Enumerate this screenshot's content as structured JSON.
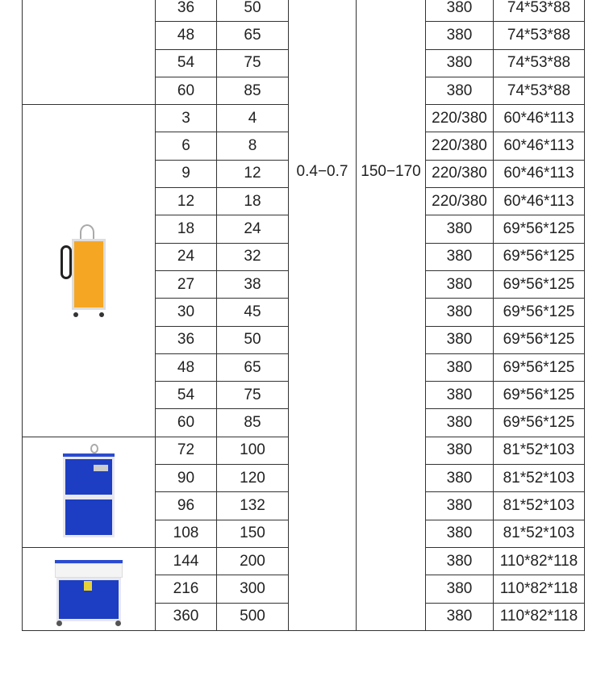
{
  "pressure": "0.4−0.7",
  "temperature": "150−170",
  "groups": [
    {
      "image": "none",
      "rows": [
        [
          "36",
          "50",
          "380",
          "74*53*88"
        ],
        [
          "48",
          "65",
          "380",
          "74*53*88"
        ],
        [
          "54",
          "75",
          "380",
          "74*53*88"
        ],
        [
          "60",
          "85",
          "380",
          "74*53*88"
        ]
      ]
    },
    {
      "image": "orange-steam-generator",
      "rows": [
        [
          "3",
          "4",
          "220/380",
          "60*46*113"
        ],
        [
          "6",
          "8",
          "220/380",
          "60*46*113"
        ],
        [
          "9",
          "12",
          "220/380",
          "60*46*113"
        ],
        [
          "12",
          "18",
          "220/380",
          "60*46*113"
        ],
        [
          "18",
          "24",
          "380",
          "69*56*125"
        ],
        [
          "24",
          "32",
          "380",
          "69*56*125"
        ],
        [
          "27",
          "38",
          "380",
          "69*56*125"
        ],
        [
          "30",
          "45",
          "380",
          "69*56*125"
        ],
        [
          "36",
          "50",
          "380",
          "69*56*125"
        ],
        [
          "48",
          "65",
          "380",
          "69*56*125"
        ],
        [
          "54",
          "75",
          "380",
          "69*56*125"
        ],
        [
          "60",
          "85",
          "380",
          "69*56*125"
        ]
      ]
    },
    {
      "image": "blue-steam-generator",
      "rows": [
        [
          "72",
          "100",
          "380",
          "81*52*103"
        ],
        [
          "90",
          "120",
          "380",
          "81*52*103"
        ],
        [
          "96",
          "132",
          "380",
          "81*52*103"
        ],
        [
          "108",
          "150",
          "380",
          "81*52*103"
        ]
      ]
    },
    {
      "image": "large-blue-steam-generator",
      "rows": [
        [
          "144",
          "200",
          "380",
          "110*82*118"
        ],
        [
          "216",
          "300",
          "380",
          "110*82*118"
        ],
        [
          "360",
          "500",
          "380",
          "110*82*118"
        ]
      ]
    }
  ],
  "colors": {
    "border": "#333333",
    "text": "#222222",
    "machine_blue": "#1d3ec2",
    "machine_orange": "#f5a623"
  }
}
